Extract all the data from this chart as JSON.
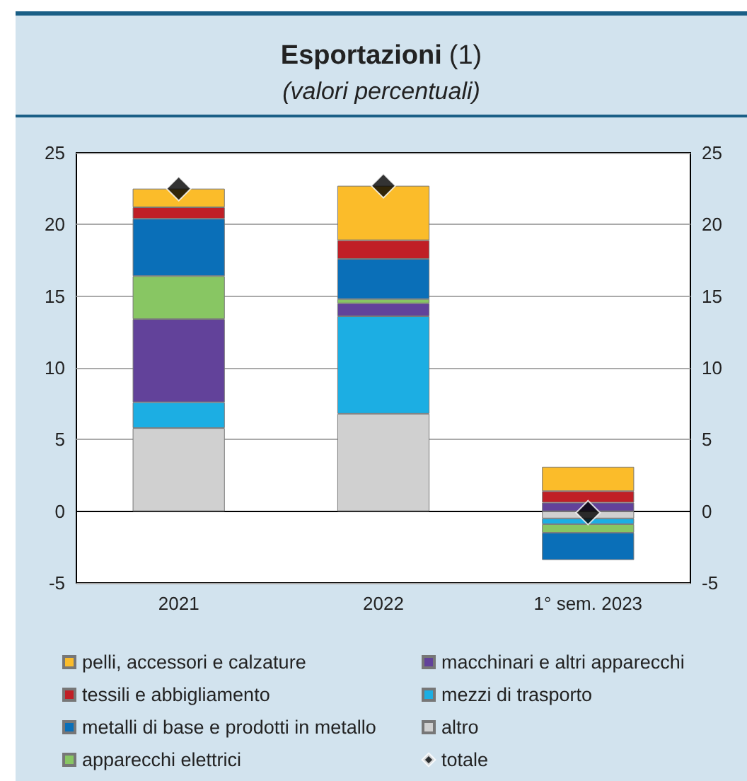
{
  "chart_data": {
    "type": "bar",
    "title": "Esportazioni (1)",
    "subtitle": "(valori percentuali)",
    "categories": [
      "2021",
      "2022",
      "1° sem. 2023"
    ],
    "stacked": true,
    "series": [
      {
        "name": "altro",
        "color": "#d0d0d0",
        "values": [
          5.8,
          6.8,
          -0.5
        ]
      },
      {
        "name": "mezzi di trasporto",
        "color": "#1caee3",
        "values": [
          1.8,
          6.8,
          -0.4
        ]
      },
      {
        "name": "macchinari e altri apparecchi",
        "color": "#62429a",
        "values": [
          5.8,
          0.9,
          0.6
        ]
      },
      {
        "name": "apparecchi elettrici",
        "color": "#88c663",
        "values": [
          3.0,
          0.3,
          -0.6
        ]
      },
      {
        "name": "metalli di base e prodotti in metallo",
        "color": "#0a6fb8",
        "values": [
          4.0,
          2.8,
          -1.9
        ]
      },
      {
        "name": "tessili e abbigliamento",
        "color": "#c01f26",
        "values": [
          0.8,
          1.3,
          0.8
        ]
      },
      {
        "name": "pelli, accessori e calzature",
        "color": "#fbbc2a",
        "values": [
          1.3,
          3.8,
          1.7
        ]
      },
      {
        "name": "totale",
        "type": "scatter",
        "marker": "diamond",
        "color": "#000000",
        "values": [
          22.5,
          22.7,
          -0.1
        ]
      }
    ],
    "ylim": [
      -5,
      25
    ],
    "yticks": [
      -5,
      0,
      5,
      10,
      15,
      20,
      25
    ],
    "y2lim": [
      -5,
      25
    ],
    "y2ticks": [
      -5,
      0,
      5,
      10,
      15,
      20,
      25
    ],
    "grid": "y",
    "legend": "bottom"
  }
}
